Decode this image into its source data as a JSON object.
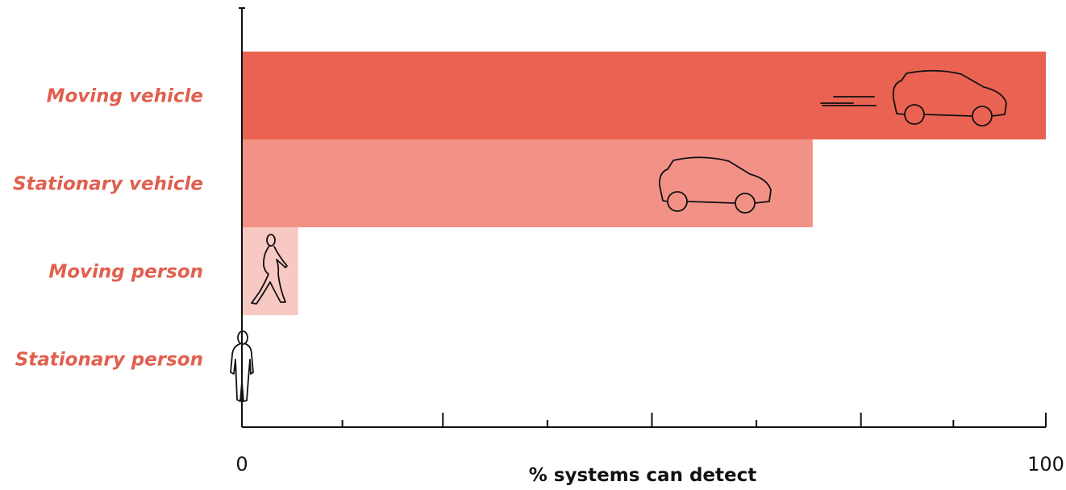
{
  "chart_data": {
    "type": "bar",
    "orientation": "horizontal",
    "categories": [
      "Moving vehicle",
      "Stationary vehicle",
      "Moving person",
      "Stationary person"
    ],
    "values": [
      100,
      71,
      7,
      0
    ],
    "xlabel": "% systems can detect",
    "xlim": [
      0,
      100
    ],
    "x_tick_labels": [
      "0",
      "100"
    ],
    "grid": false,
    "legend": "none"
  },
  "colors": {
    "label": "#e0604f",
    "bars": [
      "#ea6352",
      "#f29287",
      "#f8c8c2",
      "#fbe2de"
    ],
    "axis": "#111111"
  },
  "icons": {
    "moving_vehicle": "moving-car-icon",
    "stationary_vehicle": "car-icon",
    "moving_person": "walking-person-icon",
    "stationary_person": "standing-person-icon"
  }
}
